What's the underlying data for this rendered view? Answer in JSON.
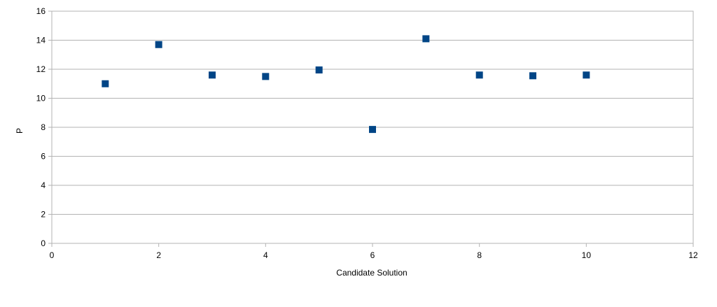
{
  "chart_data": {
    "type": "scatter",
    "title": "",
    "xlabel": "Candidate Solution",
    "ylabel": "P",
    "xlim": [
      0,
      12
    ],
    "ylim": [
      0,
      16
    ],
    "xticks": [
      0,
      2,
      4,
      6,
      8,
      10,
      12
    ],
    "yticks": [
      0,
      2,
      4,
      6,
      8,
      10,
      12,
      14,
      16
    ],
    "grid": "horizontal",
    "legend": "none",
    "series": [
      {
        "name": "P",
        "color": "#004586",
        "marker": "square",
        "x": [
          1,
          2,
          3,
          4,
          5,
          6,
          7,
          8,
          9,
          10
        ],
        "y": [
          11.0,
          13.7,
          11.6,
          11.5,
          11.95,
          7.85,
          14.1,
          11.6,
          11.55,
          11.6
        ]
      }
    ]
  }
}
